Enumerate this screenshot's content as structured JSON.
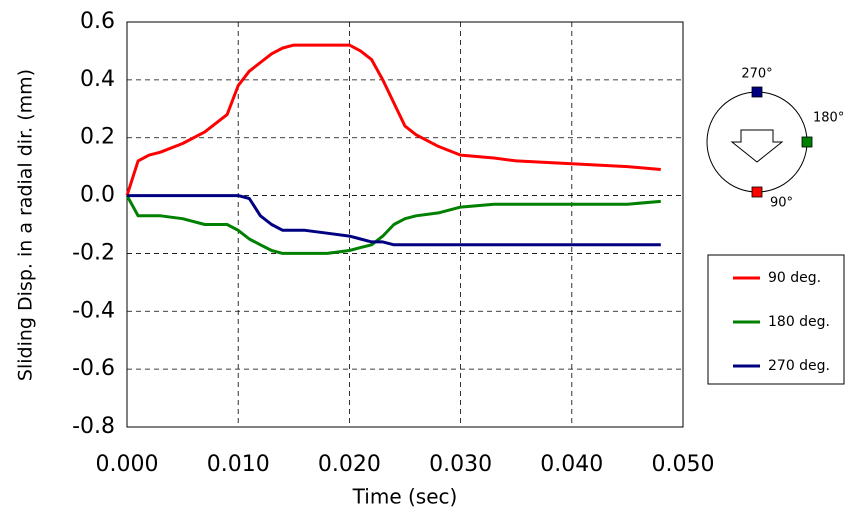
{
  "chart_data": {
    "type": "line",
    "x_label": "Time (sec)",
    "y_label": "Sliding Disp. in a radial dir. (mm)",
    "x": [
      0,
      0.001,
      0.002,
      0.003,
      0.005,
      0.007,
      0.009,
      0.01,
      0.011,
      0.012,
      0.013,
      0.014,
      0.015,
      0.016,
      0.018,
      0.02,
      0.021,
      0.022,
      0.023,
      0.024,
      0.025,
      0.026,
      0.028,
      0.03,
      0.033,
      0.035,
      0.04,
      0.045,
      0.048
    ],
    "series": [
      {
        "name": "90 deg.",
        "color": "#ff0000",
        "values": [
          0,
          0.12,
          0.14,
          0.15,
          0.18,
          0.22,
          0.28,
          0.38,
          0.43,
          0.46,
          0.49,
          0.51,
          0.52,
          0.52,
          0.52,
          0.52,
          0.5,
          0.47,
          0.4,
          0.32,
          0.24,
          0.21,
          0.17,
          0.14,
          0.13,
          0.12,
          0.11,
          0.1,
          0.09
        ]
      },
      {
        "name": "180 deg.",
        "color": "#008000",
        "values": [
          0,
          -0.07,
          -0.07,
          -0.07,
          -0.08,
          -0.1,
          -0.1,
          -0.12,
          -0.15,
          -0.17,
          -0.19,
          -0.2,
          -0.2,
          -0.2,
          -0.2,
          -0.19,
          -0.18,
          -0.17,
          -0.14,
          -0.1,
          -0.08,
          -0.07,
          -0.06,
          -0.04,
          -0.03,
          -0.03,
          -0.03,
          -0.03,
          -0.02
        ]
      },
      {
        "name": "270 deg.",
        "color": "#000080",
        "values": [
          0,
          0,
          0,
          0,
          0,
          0,
          0,
          0,
          -0.01,
          -0.07,
          -0.1,
          -0.12,
          -0.12,
          -0.12,
          -0.13,
          -0.14,
          -0.15,
          -0.16,
          -0.16,
          -0.17,
          -0.17,
          -0.17,
          -0.17,
          -0.17,
          -0.17,
          -0.17,
          -0.17,
          -0.17,
          -0.17
        ]
      }
    ],
    "xlim": [
      0,
      0.05
    ],
    "xticks": [
      {
        "value": 0,
        "label": "0.000"
      },
      {
        "value": 0.01,
        "label": "0.010"
      },
      {
        "value": 0.02,
        "label": "0.020"
      },
      {
        "value": 0.03,
        "label": "0.030"
      },
      {
        "value": 0.04,
        "label": "0.040"
      },
      {
        "value": 0.05,
        "label": "0.050"
      }
    ],
    "ylim": [
      -0.8,
      0.6
    ],
    "yticks": [
      0.6,
      0.4,
      0.2,
      {
        "value": 0,
        "label": "0.0"
      },
      -0.2,
      -0.4,
      -0.6,
      -0.8
    ],
    "grid": true,
    "legend": "right",
    "inset_labels": [
      "270°",
      "180°",
      "90°"
    ]
  }
}
